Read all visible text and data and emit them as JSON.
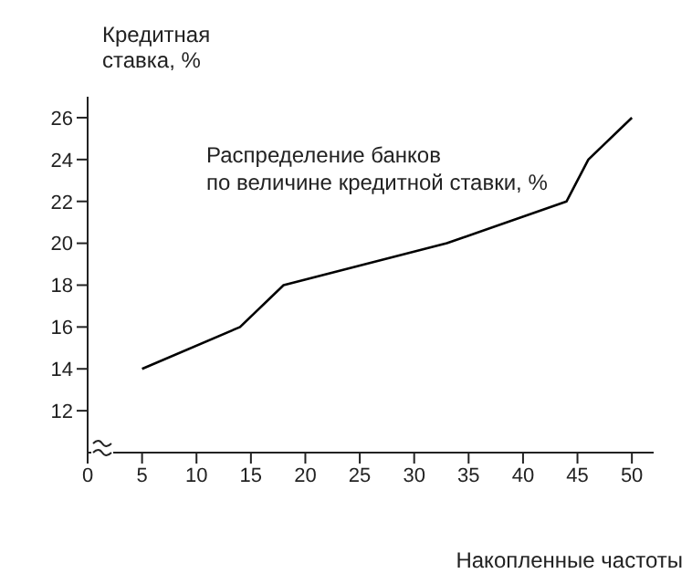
{
  "chart_data": {
    "type": "line",
    "ylabel": "Кредитная\nставка, %",
    "xlabel": "Накопленные частоты",
    "annotations": [
      "Распределение банков\nпо величине кредитной ставки, %"
    ],
    "x": [
      5,
      14,
      18,
      33,
      44,
      46,
      50
    ],
    "series": [
      {
        "color": "#000000",
        "values": [
          14,
          16,
          18,
          20,
          22,
          24,
          26
        ]
      }
    ],
    "xlim": [
      0,
      52
    ],
    "xticks": [
      0,
      5,
      10,
      15,
      20,
      25,
      30,
      35,
      40,
      45,
      50
    ],
    "ylim": [
      10,
      27
    ],
    "yticks": [
      12,
      14,
      16,
      18,
      20,
      22,
      24,
      26
    ],
    "grid": false,
    "legend": false,
    "marker": "none"
  }
}
